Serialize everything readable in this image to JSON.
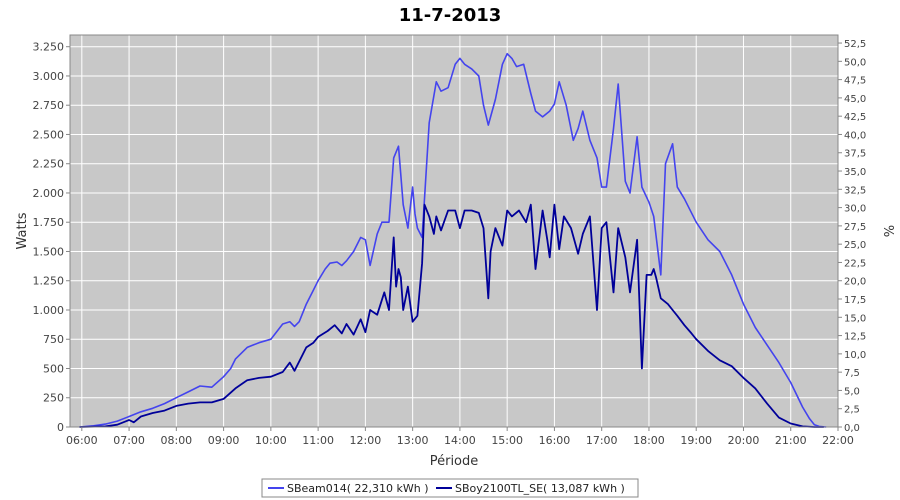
{
  "chart_data": {
    "type": "line",
    "title": "11-7-2013",
    "xlabel": "Période",
    "ylabel": "Watts",
    "y2label": "%",
    "xlim": [
      5.75,
      22.0
    ],
    "ylim": [
      0,
      3350
    ],
    "y2lim": [
      0,
      53.6
    ],
    "x_ticks": [
      6,
      7,
      8,
      9,
      10,
      11,
      12,
      13,
      14,
      15,
      16,
      17,
      18,
      19,
      20,
      21,
      22
    ],
    "x_tick_labels": [
      "06:00",
      "07:00",
      "08:00",
      "09:00",
      "10:00",
      "11:00",
      "12:00",
      "13:00",
      "14:00",
      "15:00",
      "16:00",
      "17:00",
      "18:00",
      "19:00",
      "20:00",
      "21:00",
      "22:00"
    ],
    "y_ticks": [
      0,
      250,
      500,
      750,
      1000,
      1250,
      1500,
      1750,
      2000,
      2250,
      2500,
      2750,
      3000,
      3250
    ],
    "y_tick_labels": [
      "0",
      "250",
      "500",
      "750",
      "1.000",
      "1.250",
      "1.500",
      "1.750",
      "2.000",
      "2.250",
      "2.500",
      "2.750",
      "3.000",
      "3.250"
    ],
    "y2_ticks": [
      0,
      2.5,
      5,
      7.5,
      10,
      12.5,
      15,
      17.5,
      20,
      22.5,
      25,
      27.5,
      30,
      32.5,
      35,
      37.5,
      40,
      42.5,
      45,
      47.5,
      50,
      52.5
    ],
    "y2_tick_labels": [
      "0,0",
      "2,5",
      "5,0",
      "7,5",
      "10,0",
      "12,5",
      "15,0",
      "17,5",
      "20,0",
      "22,5",
      "25,0",
      "27,5",
      "30,0",
      "32,5",
      "35,0",
      "37,5",
      "40,0",
      "42,5",
      "45,0",
      "47,5",
      "50,0",
      "52,5"
    ],
    "grid": true,
    "legend_position": "bottom",
    "colors": {
      "plot_bg": "#c8c8c8",
      "grid": "#ffffff"
    },
    "series": [
      {
        "name": "SBeam014( 22,310 kWh )",
        "color": "#4444ee",
        "x": [
          5.95,
          6.25,
          6.5,
          6.75,
          7.0,
          7.25,
          7.5,
          7.75,
          8.0,
          8.25,
          8.5,
          8.75,
          9.0,
          9.15,
          9.25,
          9.5,
          9.75,
          10.0,
          10.25,
          10.4,
          10.5,
          10.6,
          10.75,
          10.9,
          11.0,
          11.15,
          11.25,
          11.4,
          11.5,
          11.6,
          11.75,
          11.9,
          12.0,
          12.1,
          12.25,
          12.35,
          12.5,
          12.6,
          12.7,
          12.8,
          12.9,
          13.0,
          13.05,
          13.1,
          13.2,
          13.35,
          13.5,
          13.6,
          13.75,
          13.9,
          14.0,
          14.1,
          14.25,
          14.4,
          14.5,
          14.6,
          14.75,
          14.9,
          15.0,
          15.1,
          15.2,
          15.35,
          15.5,
          15.6,
          15.75,
          15.9,
          16.0,
          16.1,
          16.25,
          16.4,
          16.5,
          16.6,
          16.75,
          16.9,
          17.0,
          17.1,
          17.25,
          17.35,
          17.5,
          17.6,
          17.75,
          17.85,
          18.0,
          18.1,
          18.25,
          18.35,
          18.5,
          18.6,
          18.75,
          19.0,
          19.25,
          19.5,
          19.75,
          20.0,
          20.25,
          20.5,
          20.75,
          21.0,
          21.25,
          21.4,
          21.5,
          21.6,
          21.75
        ],
        "y": [
          0,
          10,
          25,
          50,
          90,
          130,
          160,
          200,
          250,
          300,
          350,
          340,
          430,
          500,
          580,
          680,
          720,
          750,
          880,
          900,
          860,
          900,
          1050,
          1170,
          1250,
          1350,
          1400,
          1410,
          1380,
          1420,
          1500,
          1620,
          1600,
          1380,
          1650,
          1750,
          1750,
          2300,
          2400,
          1900,
          1700,
          2050,
          1820,
          1700,
          1620,
          2600,
          2950,
          2870,
          2900,
          3100,
          3150,
          3100,
          3060,
          3000,
          2750,
          2580,
          2800,
          3100,
          3190,
          3150,
          3080,
          3100,
          2850,
          2700,
          2650,
          2700,
          2760,
          2950,
          2750,
          2450,
          2550,
          2700,
          2450,
          2300,
          2050,
          2050,
          2550,
          2930,
          2100,
          2000,
          2480,
          2050,
          1920,
          1800,
          1300,
          2250,
          2420,
          2050,
          1950,
          1750,
          1600,
          1500,
          1300,
          1050,
          850,
          700,
          550,
          380,
          170,
          70,
          20,
          5,
          0
        ]
      },
      {
        "name": "SBoy2100TL_SE( 13,087 kWh )",
        "color": "#000099",
        "x": [
          5.95,
          6.5,
          6.75,
          7.0,
          7.1,
          7.25,
          7.5,
          7.75,
          8.0,
          8.25,
          8.5,
          8.75,
          9.0,
          9.25,
          9.5,
          9.75,
          10.0,
          10.25,
          10.4,
          10.5,
          10.75,
          10.9,
          11.0,
          11.2,
          11.35,
          11.5,
          11.6,
          11.75,
          11.9,
          12.0,
          12.1,
          12.25,
          12.4,
          12.5,
          12.6,
          12.65,
          12.7,
          12.75,
          12.8,
          12.9,
          13.0,
          13.1,
          13.2,
          13.25,
          13.35,
          13.45,
          13.5,
          13.6,
          13.75,
          13.9,
          14.0,
          14.1,
          14.25,
          14.4,
          14.5,
          14.6,
          14.65,
          14.75,
          14.9,
          15.0,
          15.1,
          15.25,
          15.4,
          15.5,
          15.6,
          15.75,
          15.85,
          15.9,
          16.0,
          16.1,
          16.2,
          16.35,
          16.5,
          16.6,
          16.75,
          16.9,
          17.0,
          17.1,
          17.25,
          17.35,
          17.5,
          17.6,
          17.75,
          17.85,
          17.95,
          18.05,
          18.1,
          18.15,
          18.25,
          18.4,
          18.5,
          18.6,
          18.75,
          18.9,
          19.0,
          19.25,
          19.5,
          19.75,
          20.0,
          20.25,
          20.5,
          20.75,
          21.0,
          21.25,
          21.5,
          21.7
        ],
        "y": [
          0,
          5,
          20,
          60,
          40,
          90,
          120,
          140,
          180,
          200,
          210,
          210,
          240,
          330,
          400,
          420,
          430,
          470,
          550,
          480,
          680,
          720,
          770,
          820,
          870,
          800,
          880,
          790,
          920,
          810,
          1000,
          960,
          1150,
          1000,
          1620,
          1200,
          1350,
          1280,
          1000,
          1200,
          900,
          950,
          1400,
          1900,
          1800,
          1650,
          1800,
          1680,
          1850,
          1850,
          1700,
          1850,
          1850,
          1830,
          1700,
          1100,
          1500,
          1700,
          1550,
          1850,
          1800,
          1850,
          1750,
          1900,
          1350,
          1850,
          1600,
          1450,
          1900,
          1520,
          1800,
          1700,
          1480,
          1650,
          1800,
          1000,
          1700,
          1750,
          1150,
          1700,
          1450,
          1150,
          1600,
          500,
          1300,
          1300,
          1350,
          1280,
          1100,
          1050,
          1000,
          950,
          870,
          800,
          750,
          650,
          570,
          520,
          420,
          330,
          200,
          80,
          30,
          5,
          0,
          0
        ]
      }
    ]
  }
}
